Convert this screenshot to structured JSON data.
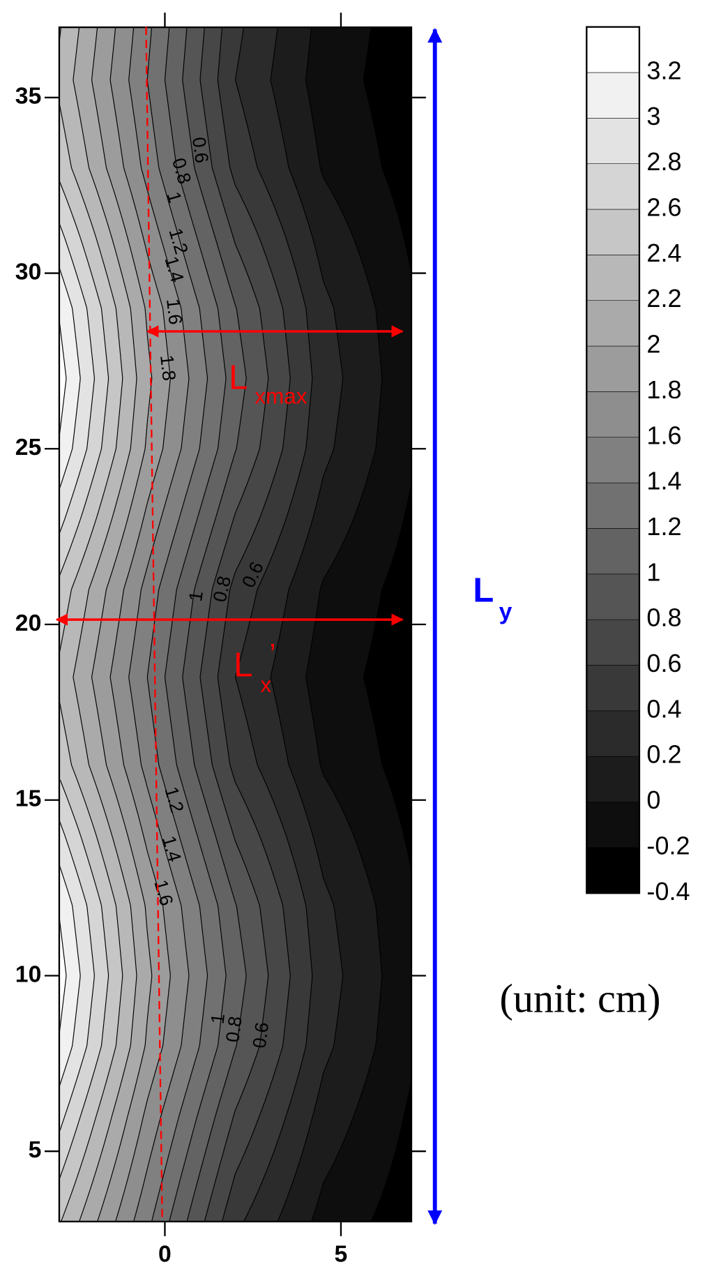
{
  "chart_data": {
    "type": "contour",
    "x": [
      -3,
      -0.5,
      2,
      4.5,
      7
    ],
    "y": [
      3,
      6,
      8,
      10,
      12,
      14,
      16,
      18.5,
      21,
      23,
      25,
      27,
      29,
      31,
      33,
      35.5,
      37
    ],
    "z": [
      [
        2.42,
        1.45,
        0.45,
        -0.07,
        -0.31
      ],
      [
        2.87,
        1.75,
        0.78,
        0.12,
        -0.23
      ],
      [
        3.18,
        1.97,
        1.01,
        0.25,
        -0.17
      ],
      [
        3.3,
        2.05,
        1.1,
        0.3,
        -0.15
      ],
      [
        3.18,
        1.97,
        1.01,
        0.25,
        -0.17
      ],
      [
        2.87,
        1.75,
        0.78,
        0.12,
        -0.23
      ],
      [
        2.54,
        1.53,
        0.54,
        -0.02,
        -0.29
      ],
      [
        2.35,
        1.4,
        0.4,
        -0.1,
        -0.32
      ],
      [
        2.54,
        1.53,
        0.54,
        -0.02,
        -0.29
      ],
      [
        2.87,
        1.75,
        0.78,
        0.12,
        -0.23
      ],
      [
        3.18,
        1.97,
        1.01,
        0.25,
        -0.17
      ],
      [
        3.3,
        2.05,
        1.1,
        0.3,
        -0.15
      ],
      [
        3.18,
        1.97,
        1.01,
        0.25,
        -0.17
      ],
      [
        2.87,
        1.75,
        0.78,
        0.12,
        -0.23
      ],
      [
        2.54,
        1.53,
        0.54,
        -0.02,
        -0.29
      ],
      [
        2.35,
        1.4,
        0.4,
        -0.1,
        -0.32
      ],
      [
        2.42,
        1.45,
        0.45,
        -0.07,
        -0.31
      ]
    ],
    "xlim": [
      -3,
      7
    ],
    "ylim": [
      3,
      37
    ],
    "xticks": [
      0,
      5
    ],
    "yticks": [
      5,
      10,
      15,
      20,
      25,
      30,
      35
    ],
    "zlim": [
      -0.4,
      3.4
    ],
    "colorbar_ticks": [
      -0.4,
      -0.2,
      0,
      0.2,
      0.4,
      0.6,
      0.8,
      1,
      1.2,
      1.4,
      1.6,
      1.8,
      2,
      2.2,
      2.4,
      2.6,
      2.8,
      3,
      3.2
    ],
    "colormap": [
      "#000000",
      "#ffffff"
    ],
    "contour_labels": [
      {
        "value": 0.6,
        "x": 0.97,
        "y": 33.5
      },
      {
        "value": 0.8,
        "x": 0.44,
        "y": 32.9
      },
      {
        "value": 1,
        "x": 0.23,
        "y": 32.15
      },
      {
        "value": 1.2,
        "x": 0.35,
        "y": 30.9
      },
      {
        "value": 1.4,
        "x": 0.23,
        "y": 30.1
      },
      {
        "value": 1.6,
        "x": 0.23,
        "y": 28.9
      },
      {
        "value": 1.8,
        "x": 0.05,
        "y": 27.3
      },
      {
        "value": 1,
        "x": 0.92,
        "y": 20.8
      },
      {
        "value": 0.8,
        "x": 1.66,
        "y": 21.0
      },
      {
        "value": 0.6,
        "x": 2.53,
        "y": 21.4
      },
      {
        "value": 1.2,
        "x": 0.23,
        "y": 15.0
      },
      {
        "value": 1.4,
        "x": 0.16,
        "y": 13.6
      },
      {
        "value": 1.6,
        "x": -0.07,
        "y": 12.35
      },
      {
        "value": 1,
        "x": 1.54,
        "y": 8.77
      },
      {
        "value": 0.8,
        "x": 2.0,
        "y": 8.47
      },
      {
        "value": 0.6,
        "x": 2.76,
        "y": 8.3
      }
    ],
    "annotations": {
      "lxmax": {
        "text": "L",
        "sub": "xmax"
      },
      "lx": {
        "text": "L",
        "sub": "x",
        "sup": "’"
      },
      "ly": {
        "text": "L",
        "sub": "y"
      }
    },
    "note": "(unit: cm)"
  }
}
